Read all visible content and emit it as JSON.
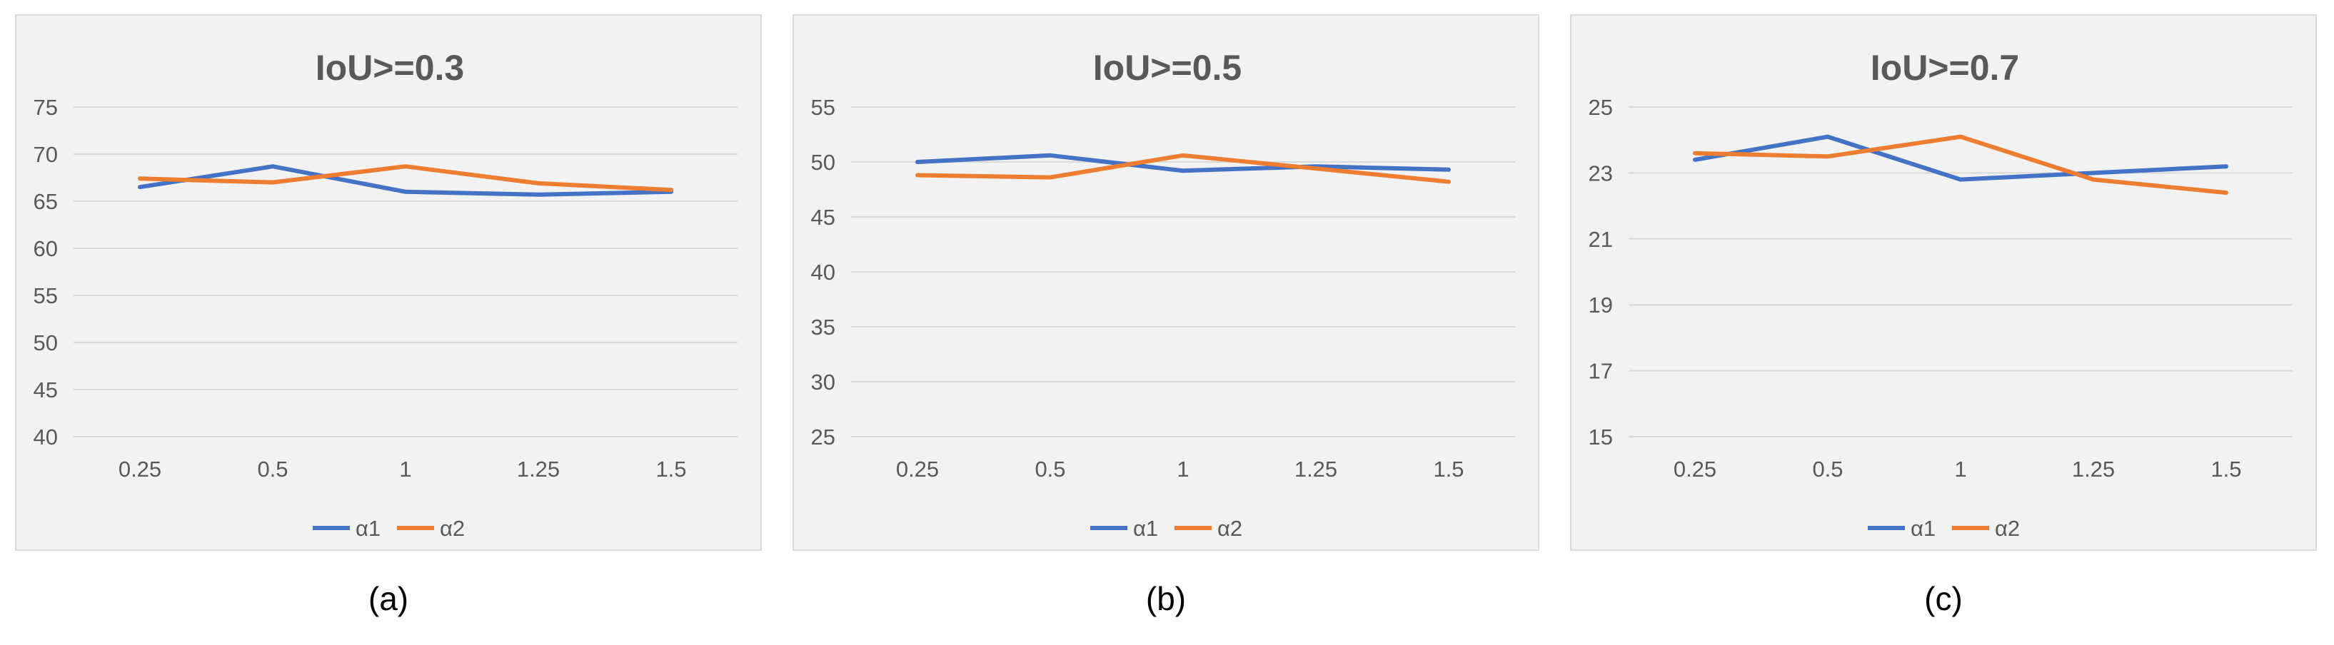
{
  "chart_data": [
    {
      "type": "line",
      "title": "IoU>=0.3",
      "caption": "(a)",
      "categories": [
        "0.25",
        "0.5",
        "1",
        "1.25",
        "1.5"
      ],
      "yticks": [
        "40",
        "45",
        "50",
        "55",
        "60",
        "65",
        "70",
        "75"
      ],
      "ylim": [
        40,
        75
      ],
      "grid": true,
      "legend_position": "bottom",
      "series": [
        {
          "name": "α1",
          "color": "#4472c4",
          "values": [
            66.5,
            68.7,
            66.0,
            65.7,
            66.0
          ]
        },
        {
          "name": "α2",
          "color": "#ed7d31",
          "values": [
            67.4,
            67.0,
            68.7,
            66.9,
            66.2
          ]
        }
      ]
    },
    {
      "type": "line",
      "title": "IoU>=0.5",
      "caption": "(b)",
      "categories": [
        "0.25",
        "0.5",
        "1",
        "1.25",
        "1.5"
      ],
      "yticks": [
        "25",
        "30",
        "35",
        "40",
        "45",
        "50",
        "55"
      ],
      "ylim": [
        25,
        55
      ],
      "grid": true,
      "legend_position": "bottom",
      "series": [
        {
          "name": "α1",
          "color": "#4472c4",
          "values": [
            50.0,
            50.6,
            49.2,
            49.6,
            49.3
          ]
        },
        {
          "name": "α2",
          "color": "#ed7d31",
          "values": [
            48.8,
            48.6,
            50.6,
            49.4,
            48.2
          ]
        }
      ]
    },
    {
      "type": "line",
      "title": "IoU>=0.7",
      "caption": "(c)",
      "categories": [
        "0.25",
        "0.5",
        "1",
        "1.25",
        "1.5"
      ],
      "yticks": [
        "15",
        "17",
        "19",
        "21",
        "23",
        "25"
      ],
      "ylim": [
        15,
        25
      ],
      "grid": true,
      "legend_position": "bottom",
      "series": [
        {
          "name": "α1",
          "color": "#4472c4",
          "values": [
            23.4,
            24.1,
            22.8,
            23.0,
            23.2
          ]
        },
        {
          "name": "α2",
          "color": "#ed7d31",
          "values": [
            23.6,
            23.5,
            24.1,
            22.8,
            22.4
          ]
        }
      ]
    }
  ]
}
